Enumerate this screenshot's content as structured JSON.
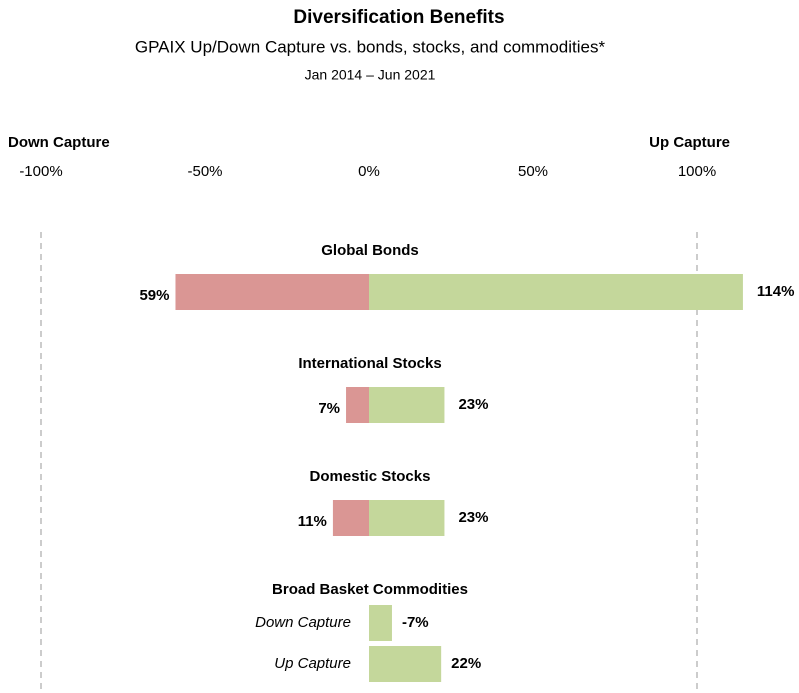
{
  "chart_data": {
    "type": "diverging-bar",
    "title": "Diversification Benefits",
    "subtitle": "GPAIX Up/Down Capture vs. bonds, stocks, and commodities*",
    "period": "Jan 2014 – Jun 2021",
    "xlim": [
      -100,
      100
    ],
    "xticks": [
      {
        "value": -100,
        "label": "-100%"
      },
      {
        "value": -50,
        "label": "-50%"
      },
      {
        "value": 0,
        "label": "0%"
      },
      {
        "value": 50,
        "label": "50%"
      },
      {
        "value": 100,
        "label": "100%"
      }
    ],
    "categories": [
      "Global Bonds",
      "International Stocks",
      "Domestic Stocks",
      "Broad Basket Commodities"
    ],
    "split": [
      false,
      false,
      false,
      true
    ],
    "positive_color": "#c4d79b",
    "negative_color": "#da9694",
    "series": [
      {
        "name": "Down Capture",
        "direction": -1,
        "values": [
          59,
          7,
          11,
          -7
        ],
        "value_labels": [
          "59%",
          "7%",
          "11%",
          "-7%"
        ]
      },
      {
        "name": "Up Capture",
        "direction": 1,
        "values": [
          114,
          23,
          23,
          22
        ],
        "value_labels": [
          "114%",
          "23%",
          "23%",
          "22%"
        ]
      }
    ]
  }
}
